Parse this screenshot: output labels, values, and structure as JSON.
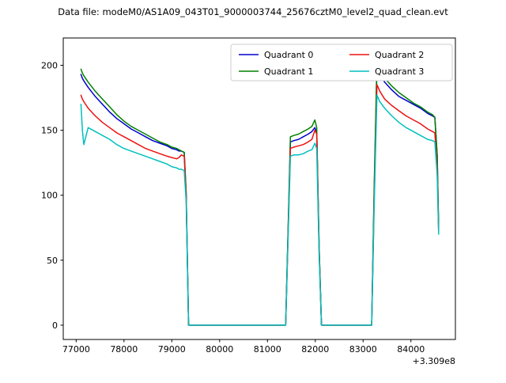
{
  "figure": {
    "background": "#ffffff"
  },
  "chart_data": {
    "type": "line",
    "title": "Data file: modeM0/AS1A09_043T01_9000003744_25676cztM0_level2_quad_clean.evt",
    "xlabel": "",
    "ylabel": "",
    "x_offset_text": "+3.309e8",
    "xlim": [
      76730,
      84930
    ],
    "ylim": [
      -11,
      221
    ],
    "xticks": [
      77000,
      78000,
      79000,
      80000,
      81000,
      82000,
      83000,
      84000
    ],
    "yticks": [
      0,
      50,
      100,
      150,
      200
    ],
    "grid": false,
    "legend": {
      "location": "upper right",
      "ncol": 2,
      "labels": [
        "Quadrant 0",
        "Quadrant 1",
        "Quadrant 2",
        "Quadrant 3"
      ]
    },
    "x": [
      77100,
      77130,
      77160,
      77250,
      77400,
      77550,
      77700,
      77850,
      78000,
      78150,
      78300,
      78450,
      78600,
      78750,
      78900,
      79000,
      79100,
      79150,
      79200,
      79260,
      79300,
      79350,
      79450,
      81380,
      81430,
      81480,
      81550,
      81650,
      81750,
      81850,
      81930,
      81990,
      82030,
      82080,
      82130,
      83180,
      83230,
      83290,
      83350,
      83450,
      83600,
      83750,
      83900,
      84050,
      84200,
      84350,
      84450,
      84500,
      84550,
      84580
    ],
    "series": [
      {
        "name": "Quadrant 0",
        "color": "#0000cd",
        "values": [
          193,
          190,
          188,
          183,
          176,
          170,
          164,
          159,
          155,
          151,
          148,
          145,
          142,
          140,
          138,
          136,
          135,
          134,
          134,
          133,
          100,
          0,
          0,
          0,
          70,
          141,
          142,
          143,
          145,
          147,
          149,
          152,
          148,
          60,
          0,
          0,
          100,
          199,
          193,
          187,
          181,
          176,
          173,
          170,
          167,
          163,
          161,
          160,
          130,
          74
        ]
      },
      {
        "name": "Quadrant 1",
        "color": "#008000",
        "values": [
          197,
          194,
          192,
          187,
          180,
          174,
          168,
          162,
          157,
          153,
          150,
          147,
          144,
          141,
          139,
          137,
          136,
          135,
          134,
          133,
          102,
          0,
          0,
          0,
          72,
          145,
          146,
          147,
          149,
          151,
          153,
          158,
          152,
          62,
          0,
          0,
          105,
          205,
          197,
          190,
          184,
          179,
          175,
          171,
          168,
          164,
          162,
          160,
          131,
          75
        ]
      },
      {
        "name": "Quadrant 2",
        "color": "#ee1111",
        "values": [
          177,
          174,
          172,
          167,
          161,
          156,
          152,
          148,
          145,
          142,
          139,
          136,
          134,
          132,
          130,
          129,
          128,
          129,
          131,
          130,
          98,
          0,
          0,
          0,
          68,
          136,
          137,
          138,
          139,
          141,
          143,
          150,
          147,
          58,
          0,
          0,
          95,
          185,
          180,
          174,
          169,
          165,
          161,
          158,
          155,
          151,
          149,
          148,
          120,
          72
        ]
      },
      {
        "name": "Quadrant 3",
        "color": "#00bfbf",
        "values": [
          170,
          150,
          139,
          152,
          149,
          146,
          143,
          139,
          136,
          134,
          132,
          130,
          128,
          126,
          124,
          122,
          121,
          120,
          120,
          119,
          95,
          0,
          0,
          0,
          65,
          130,
          131,
          131,
          132,
          134,
          135,
          140,
          136,
          55,
          0,
          0,
          90,
          177,
          172,
          167,
          161,
          156,
          152,
          149,
          146,
          143,
          142,
          141,
          115,
          70
        ]
      }
    ]
  }
}
